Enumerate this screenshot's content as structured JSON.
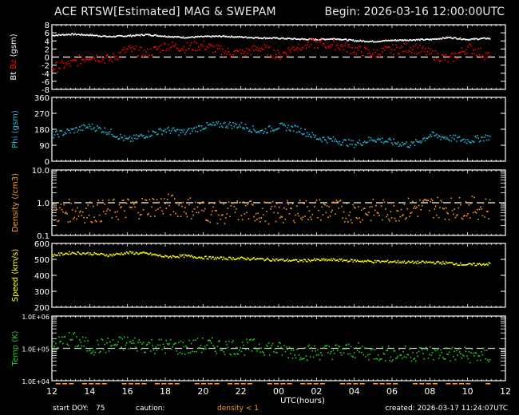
{
  "header": {
    "title": "ACE RTSW[Estimated] MAG & SWEPAM",
    "begin": "Begin: 2026-03-16 12:00:00UTC"
  },
  "footer": {
    "start_doy_label": "start DOY:",
    "start_doy_value": "75",
    "caution_label": "caution:",
    "caution_value": "density < 1",
    "created": "created: 2026-03-17 11:24:07UTC"
  },
  "colors": {
    "background": "#000000",
    "axis": "#ffffff",
    "bt": "#ffffff",
    "bz": "#ff0000",
    "phi": "#22b8d8",
    "density": "#ff9a1a",
    "speed": "#ffff00",
    "temp": "#22cc22",
    "caution": "#ff9a1a"
  },
  "x_axis": {
    "label": "UTC(hours)",
    "ticks": [
      "12",
      "14",
      "16",
      "18",
      "20",
      "22",
      "00",
      "02",
      "04",
      "06",
      "08",
      "10",
      "12"
    ]
  },
  "panels": [
    {
      "id": "mag",
      "ylabel_parts": [
        {
          "text": "Bt",
          "color": "#ffffff"
        },
        {
          "text": " Bz",
          "color": "#ff0000"
        },
        {
          "text": "  (gsm)",
          "color": "#ffffff"
        }
      ],
      "ticks": [
        "8",
        "6",
        "4",
        "2",
        "0",
        "-2",
        "-4",
        "-6",
        "-8"
      ]
    },
    {
      "id": "phi",
      "ylabel_parts": [
        {
          "text": "Phi",
          "color": "#22b8d8"
        },
        {
          "text": "  (gsm)",
          "color": "#22b8d8"
        }
      ],
      "ticks": [
        "360",
        "270",
        "180",
        "90",
        "0"
      ]
    },
    {
      "id": "density",
      "ylabel_parts": [
        {
          "text": "Density",
          "color": "#ff9a1a"
        },
        {
          "text": "  (/cm3)",
          "color": "#ff9a1a"
        }
      ],
      "ticks": [
        "10.0",
        "1.0",
        "0.1"
      ]
    },
    {
      "id": "speed",
      "ylabel_parts": [
        {
          "text": "Speed",
          "color": "#ffff00"
        },
        {
          "text": "  (km/s)",
          "color": "#ffff00"
        }
      ],
      "ticks": [
        "600",
        "500",
        "400",
        "300",
        "200"
      ]
    },
    {
      "id": "temp",
      "ylabel_parts": [
        {
          "text": "Temp",
          "color": "#22cc22"
        },
        {
          "text": "  (K)",
          "color": "#22cc22"
        }
      ],
      "ticks": [
        "1.0E+06",
        "1.0E+05",
        "1.0E+04"
      ]
    }
  ],
  "chart_data": [
    {
      "type": "scatter",
      "title": "ACE RTSW[Estimated] MAG & SWEPAM",
      "ylabel": "Bt Bz (gsm)",
      "xlabel": "UTC(hours)",
      "ylim": [
        -8,
        8
      ],
      "reference_line": 0,
      "x": [
        12,
        13,
        14,
        15,
        16,
        17,
        18,
        19,
        20,
        21,
        22,
        23,
        24,
        25,
        26,
        27,
        28,
        29,
        30,
        31,
        32,
        33,
        34,
        35,
        36
      ],
      "series": [
        {
          "name": "Bt",
          "values": [
            5.5,
            5.8,
            5.6,
            5.2,
            5.4,
            5.7,
            5.3,
            5.0,
            5.2,
            5.3,
            5.1,
            4.9,
            4.8,
            4.6,
            4.5,
            4.7,
            4.2,
            4.0,
            4.3,
            4.4,
            4.5,
            5.0,
            4.5,
            4.8,
            4.0
          ]
        },
        {
          "name": "Bz",
          "values": [
            -2.5,
            -1.5,
            0.5,
            -0.5,
            2.0,
            1.0,
            3.0,
            2.5,
            3.0,
            1.5,
            1.0,
            2.5,
            0.5,
            3.0,
            3.5,
            3.2,
            2.0,
            1.0,
            2.0,
            2.5,
            1.0,
            -0.5,
            2.5,
            0.5,
            -0.5
          ]
        }
      ]
    },
    {
      "type": "scatter",
      "ylabel": "Phi (gsm)",
      "ylim": [
        0,
        360
      ],
      "x": [
        12,
        13,
        14,
        15,
        16,
        17,
        18,
        19,
        20,
        21,
        22,
        23,
        24,
        25,
        26,
        27,
        28,
        29,
        30,
        31,
        32,
        33,
        34,
        35,
        36
      ],
      "series": [
        {
          "name": "Phi",
          "values": [
            150,
            175,
            200,
            170,
            120,
            155,
            180,
            165,
            200,
            210,
            205,
            170,
            200,
            185,
            135,
            120,
            100,
            130,
            110,
            95,
            150,
            135,
            120,
            140,
            130
          ]
        }
      ]
    },
    {
      "type": "scatter",
      "ylabel": "Density (/cm3)",
      "yscale": "log",
      "ylim": [
        0.1,
        10.0
      ],
      "reference_line": 1.0,
      "x": [
        12,
        13,
        14,
        15,
        16,
        17,
        18,
        19,
        20,
        21,
        22,
        23,
        24,
        25,
        26,
        27,
        28,
        29,
        30,
        31,
        32,
        33,
        34,
        35,
        36
      ],
      "series": [
        {
          "name": "Density",
          "values": [
            0.5,
            0.6,
            0.55,
            0.6,
            0.7,
            0.8,
            0.9,
            0.8,
            0.6,
            0.5,
            0.6,
            0.55,
            0.5,
            0.6,
            0.65,
            0.6,
            0.55,
            0.6,
            0.6,
            0.7,
            0.8,
            0.7,
            0.75,
            0.7,
            0.6
          ]
        }
      ]
    },
    {
      "type": "scatter",
      "ylabel": "Speed (km/s)",
      "ylim": [
        200,
        600
      ],
      "x": [
        12,
        13,
        14,
        15,
        16,
        17,
        18,
        19,
        20,
        21,
        22,
        23,
        24,
        25,
        26,
        27,
        28,
        29,
        30,
        31,
        32,
        33,
        34,
        35,
        36
      ],
      "series": [
        {
          "name": "Speed",
          "values": [
            530,
            545,
            540,
            530,
            545,
            540,
            520,
            525,
            515,
            510,
            510,
            505,
            500,
            495,
            500,
            500,
            495,
            490,
            490,
            485,
            485,
            480,
            470,
            475,
            480
          ]
        }
      ]
    },
    {
      "type": "scatter",
      "ylabel": "Temp (K)",
      "yscale": "log",
      "ylim": [
        10000,
        1000000
      ],
      "reference_line": 100000,
      "x": [
        12,
        13,
        14,
        15,
        16,
        17,
        18,
        19,
        20,
        21,
        22,
        23,
        24,
        25,
        26,
        27,
        28,
        29,
        30,
        31,
        32,
        33,
        34,
        35,
        36
      ],
      "series": [
        {
          "name": "Temp",
          "values": [
            120000,
            200000,
            110000,
            130000,
            150000,
            130000,
            120000,
            110000,
            130000,
            120000,
            110000,
            120000,
            95000,
            80000,
            80000,
            85000,
            90000,
            75000,
            70000,
            72000,
            75000,
            70000,
            65000,
            60000,
            55000
          ]
        }
      ]
    }
  ]
}
